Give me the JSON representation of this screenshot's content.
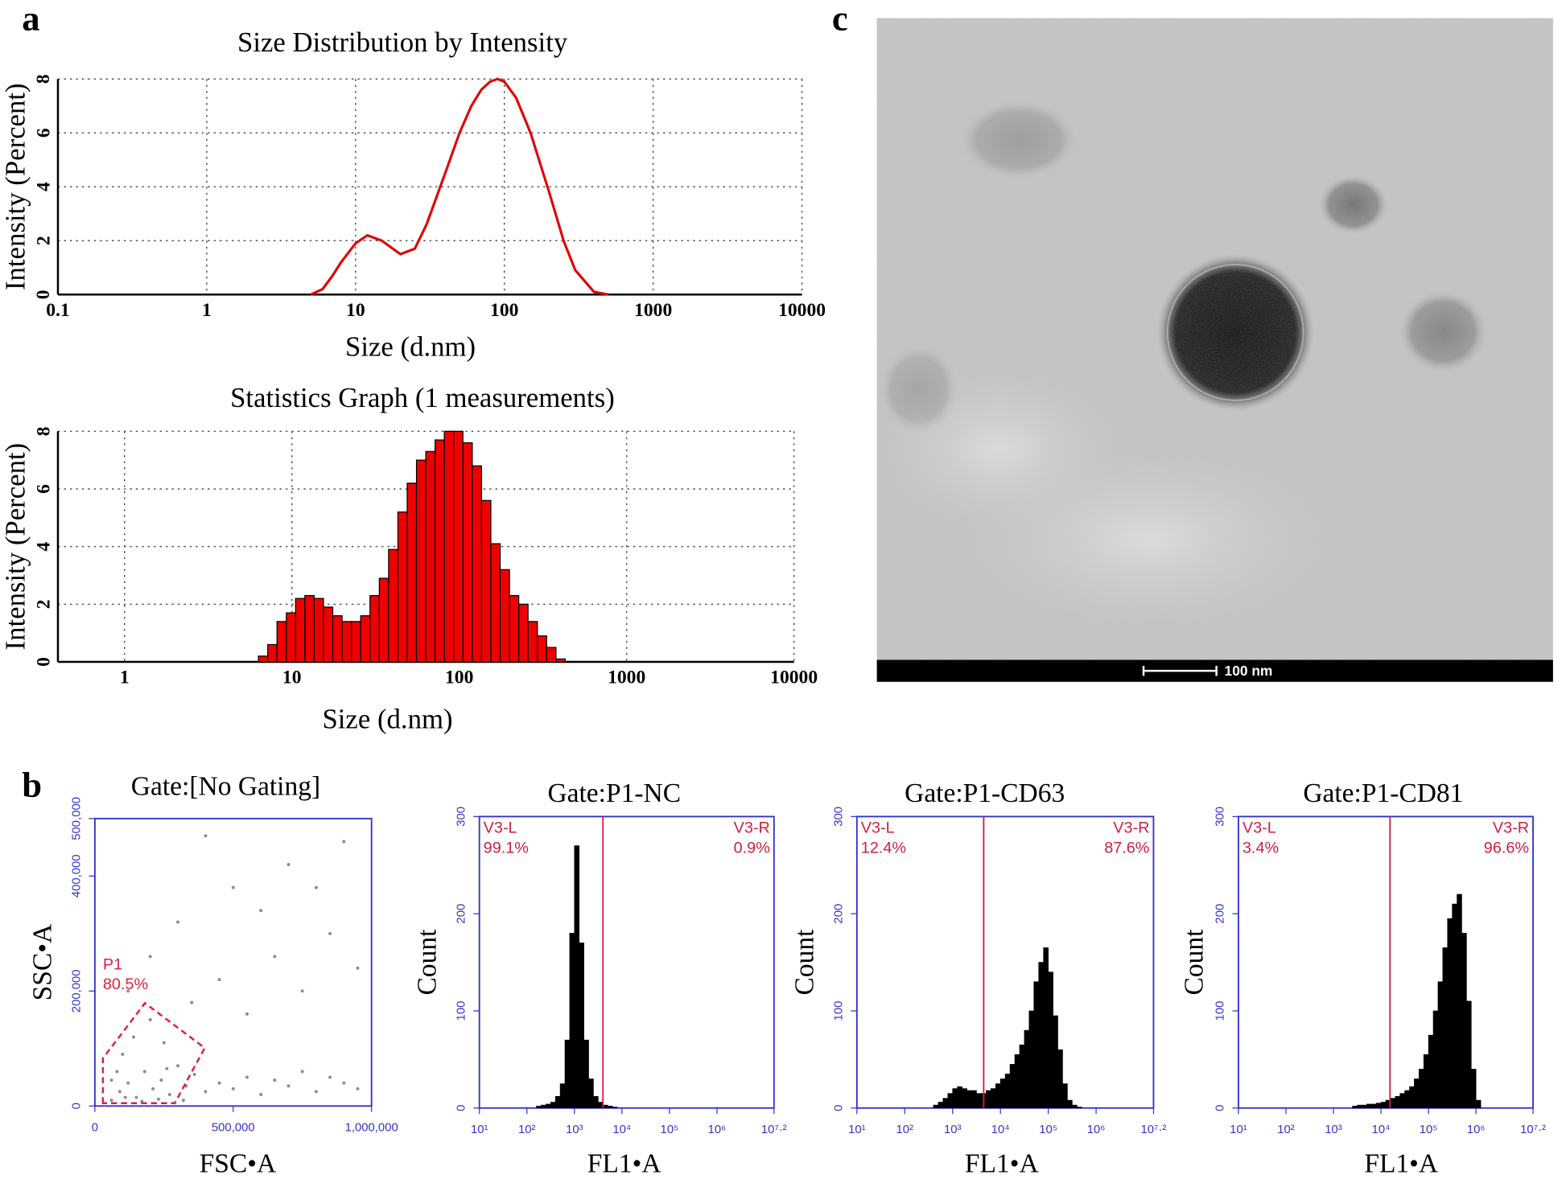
{
  "panel_labels": [
    "a",
    "b",
    "c"
  ],
  "image": {
    "scale_bar": "100 nm"
  },
  "chart_data": [
    {
      "type": "line",
      "title": "Size Distribution by Intensity",
      "x_label": "Size (d.nm)",
      "y_label": "Intensity (Percent)",
      "xlog": true,
      "xlim": [
        0.1,
        10000
      ],
      "xticks": [
        0.1,
        1,
        10,
        100,
        1000,
        10000
      ],
      "ylim": [
        0,
        8
      ],
      "yticks": [
        0,
        2,
        4,
        6,
        8
      ],
      "grid": true,
      "color": "#e00000",
      "x": [
        5,
        6,
        7,
        8,
        10,
        12,
        15,
        20,
        25,
        30,
        40,
        50,
        60,
        70,
        80,
        90,
        100,
        120,
        150,
        200,
        250,
        300,
        400,
        500
      ],
      "values": [
        0,
        0.2,
        0.7,
        1.2,
        1.9,
        2.2,
        2.0,
        1.5,
        1.7,
        2.6,
        4.5,
        6.0,
        7.0,
        7.6,
        7.9,
        8.0,
        7.9,
        7.3,
        6.0,
        3.8,
        2.0,
        0.9,
        0.1,
        0
      ]
    },
    {
      "type": "histogram",
      "title": "Statistics Graph (1 measurements)",
      "x_label": "Size (d.nm)",
      "y_label": "Intensity (Percent)",
      "xlog": true,
      "xlim": [
        0.4,
        10000
      ],
      "xticks": [
        1,
        10,
        100,
        1000,
        10000
      ],
      "ylim": [
        0,
        8
      ],
      "yticks": [
        0,
        2,
        4,
        6,
        8
      ],
      "grid": true,
      "color": "#ee0000",
      "bins": [
        6.31,
        7.171,
        8.149,
        9.261,
        10.52,
        11.96,
        13.59,
        15.44,
        17.55,
        19.95,
        22.67,
        25.76,
        29.29,
        33.29,
        37.83,
        42.99,
        48.86,
        55.53,
        63.1,
        71.71,
        81.49,
        92.61,
        105.2,
        119.6,
        135.9,
        154.4,
        175.5,
        199.5,
        226.7,
        257.6,
        292.9,
        332.9,
        378.3,
        429.9
      ],
      "values": [
        0.2,
        0.6,
        1.4,
        1.7,
        2.2,
        2.3,
        2.2,
        1.9,
        1.6,
        1.4,
        1.4,
        1.6,
        2.3,
        2.9,
        3.9,
        5.2,
        6.2,
        7.0,
        7.3,
        7.7,
        8.0,
        8.0,
        7.6,
        6.8,
        5.6,
        4.1,
        3.2,
        2.3,
        2.0,
        1.4,
        0.9,
        0.5,
        0.1
      ]
    },
    {
      "type": "scatter",
      "title": "Gate:[No Gating]",
      "x_label": "FSC•A",
      "y_label": "SSC•A",
      "xlog": false,
      "xlim": [
        0,
        1000000
      ],
      "xticks": [
        0,
        {
          "value": 500000,
          "label": "500,000"
        },
        {
          "value": 1000000,
          "label": "1,000,000"
        }
      ],
      "ylim": [
        0,
        500000
      ],
      "yticks": [
        0,
        {
          "value": 200000,
          "label": "200,000"
        },
        {
          "value": 400000,
          "label": "400,000"
        },
        {
          "value": 500000,
          "label": "500,000"
        }
      ],
      "grid": false,
      "axis_color": "#3333cc",
      "color": "#8c8c8c",
      "x": [
        60000,
        90000,
        120000,
        150000,
        180000,
        210000,
        240000,
        270000,
        300000,
        330000,
        360000,
        400000,
        450000,
        500000,
        550000,
        600000,
        650000,
        700000,
        750000,
        800000,
        850000,
        900000,
        950000,
        100000,
        140000,
        200000,
        250000,
        350000,
        450000,
        550000,
        650000,
        750000,
        850000,
        950000,
        300000,
        500000,
        700000,
        900000,
        400000,
        600000,
        800000,
        200000,
        120000,
        80000,
        110000,
        170000,
        230000,
        60000,
        260000,
        320000
      ],
      "values": [
        10000,
        25000,
        40000,
        15000,
        60000,
        30000,
        45000,
        20000,
        70000,
        35000,
        55000,
        25000,
        40000,
        30000,
        50000,
        20000,
        45000,
        35000,
        60000,
        25000,
        50000,
        40000,
        30000,
        90000,
        120000,
        150000,
        110000,
        180000,
        220000,
        160000,
        260000,
        200000,
        300000,
        240000,
        320000,
        380000,
        420000,
        460000,
        470000,
        340000,
        380000,
        260000,
        200000,
        60000,
        15000,
        8000,
        12000,
        45000,
        65000,
        10000
      ],
      "gate": {
        "name": "P1",
        "label": "80.5%",
        "color": "#e02040",
        "x": [
          29000,
          29000,
          181000,
          397000,
          289000
        ],
        "y": [
          5000,
          83000,
          179000,
          101000,
          5000
        ]
      }
    },
    {
      "type": "histogram",
      "title": "Gate:P1-NC",
      "x_label": "FL1•A",
      "y_label": "Count",
      "xlog": true,
      "xlim": [
        10,
        15848932
      ],
      "xticks": [
        {
          "value": 10,
          "label": "10¹"
        },
        {
          "value": 100,
          "label": "10²"
        },
        {
          "value": 1000,
          "label": "10³"
        },
        {
          "value": 10000,
          "label": "10⁴"
        },
        {
          "value": 100000,
          "label": "10⁵"
        },
        {
          "value": 1000000,
          "label": "10⁶"
        },
        {
          "value": 15848932,
          "label": "10⁷·²"
        }
      ],
      "ylim": [
        0,
        300
      ],
      "yticks": [
        0,
        100,
        200,
        300
      ],
      "grid": false,
      "axis_color": "#3333cc",
      "color": "#000000",
      "gate_x": 3981,
      "gate_color": "#d02040",
      "regions": [
        {
          "name": "V3-L",
          "percent": "99.1%"
        },
        {
          "name": "V3-R",
          "percent": "0.9%"
        }
      ],
      "bins": [
        158.5,
        199.5,
        251.2,
        316.2,
        398.1,
        501.2,
        631.0,
        794.3,
        1000,
        1259,
        1585,
        1995,
        2512,
        3162,
        3981,
        5012,
        6310,
        7943
      ],
      "values": [
        2,
        3,
        4,
        6,
        12,
        25,
        70,
        180,
        270,
        170,
        70,
        30,
        12,
        6,
        3,
        2,
        1
      ]
    },
    {
      "type": "histogram",
      "title": "Gate:P1-CD63",
      "x_label": "FL1•A",
      "y_label": "Count",
      "xlog": true,
      "xlim": [
        10,
        15848932
      ],
      "xticks": [
        {
          "value": 10,
          "label": "10¹"
        },
        {
          "value": 100,
          "label": "10²"
        },
        {
          "value": 1000,
          "label": "10³"
        },
        {
          "value": 10000,
          "label": "10⁴"
        },
        {
          "value": 100000,
          "label": "10⁵"
        },
        {
          "value": 1000000,
          "label": "10⁶"
        },
        {
          "value": 15848932,
          "label": "10⁷·²"
        }
      ],
      "ylim": [
        0,
        300
      ],
      "yticks": [
        0,
        100,
        200,
        300
      ],
      "grid": false,
      "axis_color": "#3333cc",
      "color": "#000000",
      "gate_x": 4467,
      "gate_color": "#d02040",
      "regions": [
        {
          "name": "V3-L",
          "percent": "12.4%"
        },
        {
          "name": "V3-R",
          "percent": "87.6%"
        }
      ],
      "bins": [
        398.1,
        501.2,
        631.0,
        794.3,
        1000,
        1259,
        1585,
        1995,
        2512,
        3162,
        3981,
        5012,
        6310,
        7943,
        10000,
        12590,
        15850,
        19950,
        25120,
        31620,
        39810,
        50120,
        63100,
        79430,
        100000,
        125900,
        158500,
        199500,
        251200,
        316200,
        398100,
        501200
      ],
      "values": [
        3,
        6,
        10,
        15,
        20,
        22,
        20,
        18,
        18,
        15,
        15,
        18,
        20,
        25,
        30,
        35,
        45,
        55,
        65,
        80,
        100,
        130,
        150,
        165,
        140,
        95,
        60,
        25,
        8,
        3,
        1
      ]
    },
    {
      "type": "histogram",
      "title": "Gate:P1-CD81",
      "x_label": "FL1•A",
      "y_label": "Count",
      "xlog": true,
      "xlim": [
        10,
        15848932
      ],
      "xticks": [
        {
          "value": 10,
          "label": "10¹"
        },
        {
          "value": 100,
          "label": "10²"
        },
        {
          "value": 1000,
          "label": "10³"
        },
        {
          "value": 10000,
          "label": "10⁴"
        },
        {
          "value": 100000,
          "label": "10⁵"
        },
        {
          "value": 1000000,
          "label": "10⁶"
        },
        {
          "value": 15848932,
          "label": "10⁷·²"
        }
      ],
      "ylim": [
        0,
        300
      ],
      "yticks": [
        0,
        100,
        200,
        300
      ],
      "grid": false,
      "axis_color": "#3333cc",
      "color": "#000000",
      "gate_x": 15500,
      "gate_color": "#d02040",
      "regions": [
        {
          "name": "V3-L",
          "percent": "3.4%"
        },
        {
          "name": "V3-R",
          "percent": "96.6%"
        }
      ],
      "bins": [
        2512,
        3162,
        3981,
        5012,
        6310,
        7943,
        10000,
        12590,
        15850,
        19950,
        25120,
        31620,
        39810,
        50120,
        63100,
        79430,
        100000,
        125900,
        158500,
        199500,
        251200,
        316200,
        398100,
        501200,
        631000,
        794300,
        1000000,
        1259000
      ],
      "values": [
        2,
        3,
        3,
        4,
        4,
        5,
        6,
        8,
        10,
        12,
        15,
        18,
        22,
        30,
        40,
        55,
        75,
        100,
        130,
        165,
        195,
        210,
        220,
        180,
        110,
        40,
        8
      ]
    }
  ]
}
